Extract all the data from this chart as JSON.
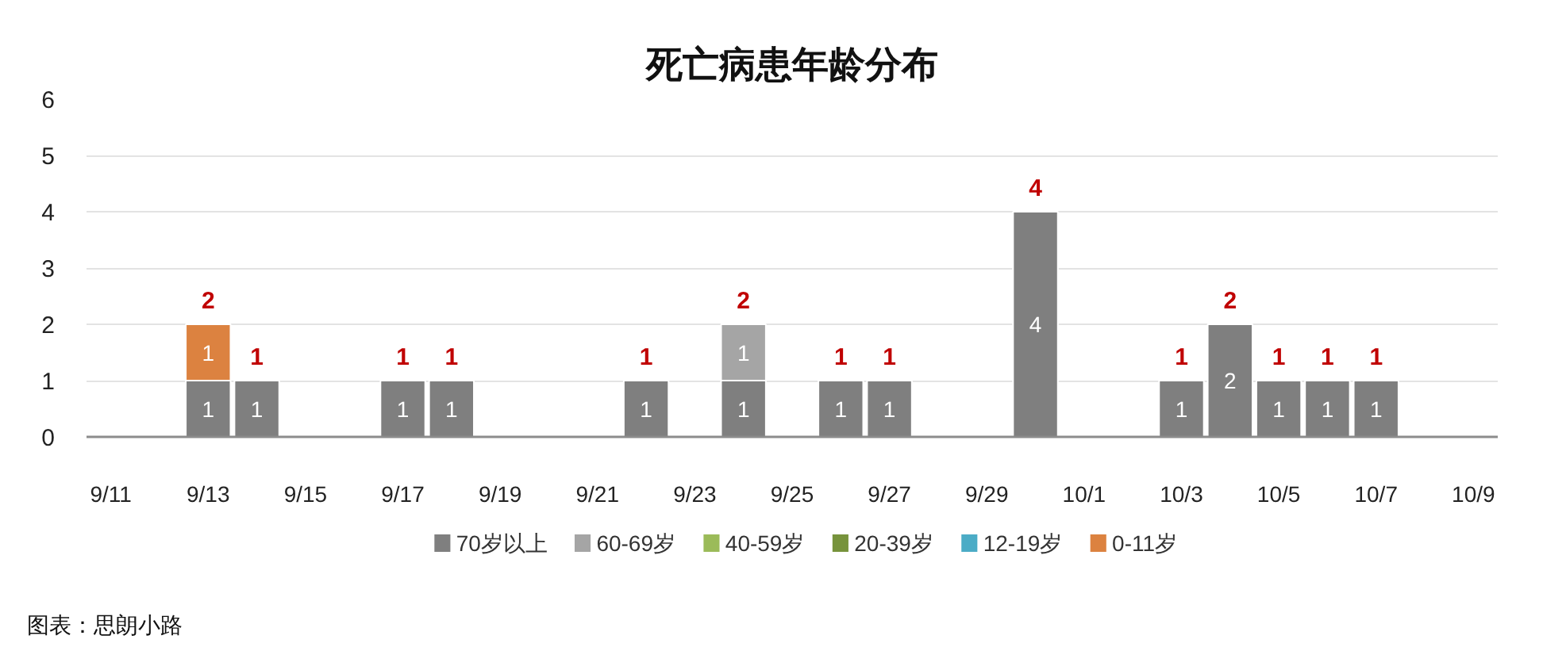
{
  "chart_data": {
    "type": "bar",
    "title": "死亡病患年龄分布",
    "stacked": true,
    "data_labels": true,
    "categories": [
      "9/11",
      null,
      "9/13",
      null,
      "9/15",
      null,
      "9/17",
      null,
      "9/19",
      null,
      "9/21",
      null,
      "9/23",
      null,
      "9/25",
      null,
      "9/27",
      null,
      "9/29",
      null,
      "10/1",
      null,
      "10/3",
      null,
      "10/5",
      null,
      "10/7",
      null,
      "10/9"
    ],
    "series": [
      {
        "name": "70岁以上",
        "color": "#7f7f7f",
        "values": [
          null,
          null,
          1,
          1,
          null,
          null,
          1,
          1,
          null,
          null,
          null,
          1,
          null,
          1,
          null,
          1,
          1,
          null,
          null,
          4,
          null,
          null,
          1,
          2,
          1,
          1,
          1,
          null,
          null
        ]
      },
      {
        "name": "60-69岁",
        "color": "#a5a5a5",
        "values": [
          null,
          null,
          null,
          null,
          null,
          null,
          null,
          null,
          null,
          null,
          null,
          null,
          null,
          1,
          null,
          null,
          null,
          null,
          null,
          null,
          null,
          null,
          null,
          null,
          null,
          null,
          null,
          null,
          null
        ]
      },
      {
        "name": "40-59岁",
        "color": "#9bbb59",
        "values": [
          null,
          null,
          null,
          null,
          null,
          null,
          null,
          null,
          null,
          null,
          null,
          null,
          null,
          null,
          null,
          null,
          null,
          null,
          null,
          null,
          null,
          null,
          null,
          null,
          null,
          null,
          null,
          null,
          null
        ]
      },
      {
        "name": "20-39岁",
        "color": "#77933c",
        "values": [
          null,
          null,
          null,
          null,
          null,
          null,
          null,
          null,
          null,
          null,
          null,
          null,
          null,
          null,
          null,
          null,
          null,
          null,
          null,
          null,
          null,
          null,
          null,
          null,
          null,
          null,
          null,
          null,
          null
        ]
      },
      {
        "name": "12-19岁",
        "color": "#4bacc6",
        "values": [
          null,
          null,
          null,
          null,
          null,
          null,
          null,
          null,
          null,
          null,
          null,
          null,
          null,
          null,
          null,
          null,
          null,
          null,
          null,
          null,
          null,
          null,
          null,
          null,
          null,
          null,
          null,
          null,
          null
        ]
      },
      {
        "name": "0-11岁",
        "color": "#dc8240",
        "values": [
          null,
          null,
          1,
          null,
          null,
          null,
          null,
          null,
          null,
          null,
          null,
          null,
          null,
          null,
          null,
          null,
          null,
          null,
          null,
          null,
          null,
          null,
          null,
          null,
          null,
          null,
          null,
          null,
          null
        ]
      }
    ],
    "totals": [
      null,
      null,
      "2",
      "1",
      null,
      null,
      "1",
      "1",
      null,
      null,
      null,
      "1",
      null,
      "2",
      null,
      "1",
      "1",
      null,
      null,
      "4",
      null,
      null,
      "1",
      "2",
      "1",
      "1",
      "1",
      null,
      null
    ],
    "ylim": [
      0,
      6
    ],
    "yticks": [
      0,
      1,
      2,
      3,
      4,
      5,
      6
    ],
    "grid": "y",
    "legend": "bottom",
    "annotations": [
      "图表：思朗小路"
    ]
  }
}
